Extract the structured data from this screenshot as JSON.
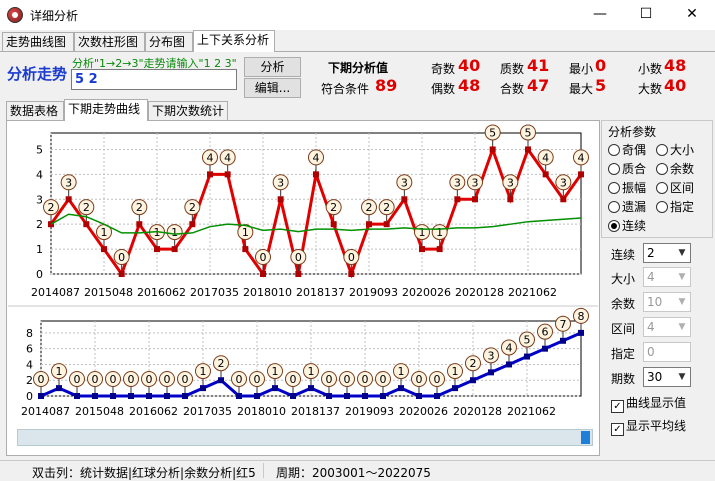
{
  "window": {
    "title": "详细分析",
    "minimize": "—",
    "maximize": "☐",
    "close": "✕"
  },
  "main_tabs": [
    "走势曲线图",
    "次数柱形图",
    "分布图",
    "上下关系分析"
  ],
  "analysis": {
    "heading": "分析走势",
    "hint": "分析\"1→2→3\"走势请输入\"1 2 3\"",
    "input_value": "5 2",
    "analyze_button": "分析",
    "edit_button": "编辑...",
    "next_label": "下期分析值",
    "match_label": "符合条件",
    "match_value": "89",
    "stats": [
      {
        "label": "奇数",
        "value": "40"
      },
      {
        "label": "质数",
        "value": "41"
      },
      {
        "label": "最小",
        "value": "0"
      },
      {
        "label": "小数",
        "value": "48"
      },
      {
        "label": "偶数",
        "value": "48"
      },
      {
        "label": "合数",
        "value": "47"
      },
      {
        "label": "最大",
        "value": "5"
      },
      {
        "label": "大数",
        "value": "40"
      }
    ]
  },
  "sub_tabs": [
    "数据表格",
    "下期走势曲线",
    "下期次数统计"
  ],
  "params": {
    "group_title": "分析参数",
    "radios": [
      {
        "label": "奇偶",
        "checked": false
      },
      {
        "label": "大小",
        "checked": false
      },
      {
        "label": "质合",
        "checked": false
      },
      {
        "label": "余数",
        "checked": false
      },
      {
        "label": "振幅",
        "checked": false
      },
      {
        "label": "区间",
        "checked": false
      },
      {
        "label": "遗漏",
        "checked": false
      },
      {
        "label": "指定",
        "checked": false
      },
      {
        "label": "连续",
        "checked": true
      }
    ],
    "fields": [
      {
        "label": "连续",
        "value": "2",
        "enabled": true
      },
      {
        "label": "大小",
        "value": "4",
        "enabled": false
      },
      {
        "label": "余数",
        "value": "10",
        "enabled": false
      },
      {
        "label": "区间",
        "value": "4",
        "enabled": false
      },
      {
        "label": "指定",
        "value": "0",
        "enabled": false
      },
      {
        "label": "期数",
        "value": "30",
        "enabled": true
      }
    ],
    "checkboxes": [
      {
        "label": "曲线显示值",
        "checked": true
      },
      {
        "label": "显示平均线",
        "checked": true
      }
    ]
  },
  "status": {
    "left": "双击列：统计数据|红球分析|余数分析|红5",
    "right": "周期：2003001～2022075"
  },
  "chart_data": [
    {
      "type": "line",
      "x_tick_labels": [
        "2014087",
        "2015048",
        "2016062",
        "2017035",
        "2018010",
        "2018137",
        "2019093",
        "2020026",
        "2020128",
        "2021062"
      ],
      "ylim": [
        0,
        5.5
      ],
      "y_ticks": [
        0,
        1,
        2,
        3,
        4,
        5
      ],
      "grid": true,
      "series": [
        {
          "values": [
            2,
            3,
            2,
            1,
            0,
            2,
            1,
            1,
            2,
            4,
            4,
            1,
            0,
            3,
            0,
            4,
            2,
            0,
            2,
            2,
            3,
            1,
            1,
            3,
            3,
            5,
            3,
            5,
            4,
            3,
            4
          ],
          "color": "#e00000"
        },
        {
          "values": [
            2.0,
            2.4,
            2.3,
            2.0,
            1.65,
            1.65,
            1.7,
            1.6,
            1.65,
            1.9,
            2.0,
            1.95,
            1.75,
            1.8,
            1.7,
            1.8,
            1.8,
            1.75,
            1.8,
            1.8,
            1.85,
            1.8,
            1.8,
            1.85,
            1.85,
            1.9,
            2.0,
            2.1,
            2.15,
            2.2,
            2.25
          ],
          "color": "#009000"
        }
      ]
    },
    {
      "type": "line",
      "x_tick_labels": [
        "2014087",
        "2015048",
        "2016062",
        "2017035",
        "2018010",
        "2018137",
        "2019093",
        "2020026",
        "2020128",
        "2021062"
      ],
      "ylim": [
        0,
        9
      ],
      "y_ticks": [
        0,
        2,
        4,
        6,
        8
      ],
      "grid": true,
      "series": [
        {
          "values": [
            0,
            1,
            0,
            0,
            0,
            0,
            0,
            0,
            0,
            1,
            2,
            0,
            0,
            1,
            0,
            1,
            0,
            0,
            0,
            0,
            1,
            0,
            0,
            1,
            2,
            3,
            4,
            5,
            6,
            7,
            8
          ],
          "color": "#0000c8"
        }
      ]
    }
  ]
}
